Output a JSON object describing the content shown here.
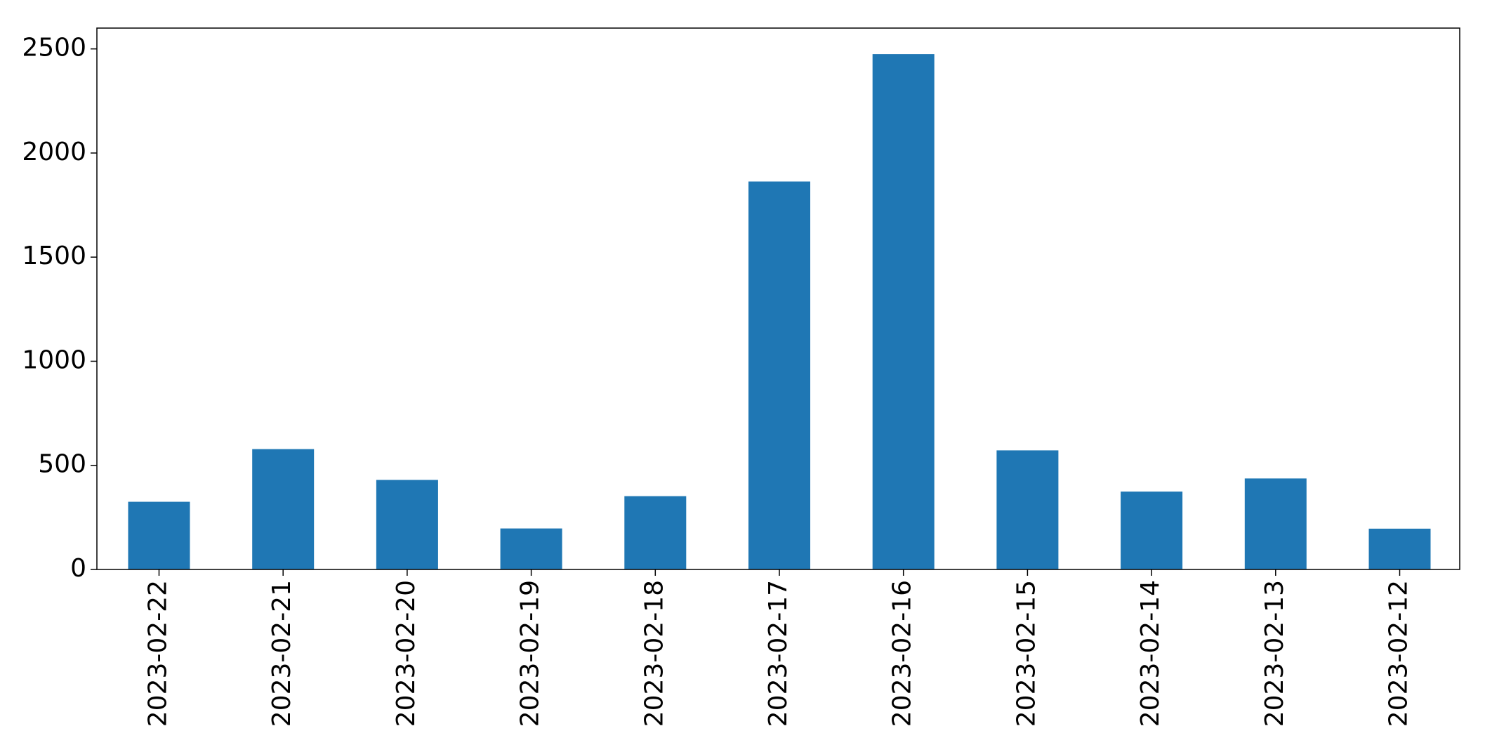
{
  "chart_data": {
    "type": "bar",
    "title": "",
    "xlabel": "",
    "ylabel": "",
    "categories": [
      "2023-02-22",
      "2023-02-21",
      "2023-02-20",
      "2023-02-19",
      "2023-02-18",
      "2023-02-17",
      "2023-02-16",
      "2023-02-15",
      "2023-02-14",
      "2023-02-13",
      "2023-02-12"
    ],
    "values": [
      325,
      578,
      430,
      197,
      352,
      1863,
      2475,
      572,
      374,
      437,
      196
    ],
    "ylim": [
      0,
      2600
    ],
    "yticks": [
      0,
      500,
      1000,
      1500,
      2000,
      2500
    ],
    "ytick_labels": [
      "0",
      "500",
      "1000",
      "1500",
      "2000",
      "2500"
    ],
    "bar_color": "#1f77b4",
    "grid": false,
    "legend": false
  }
}
